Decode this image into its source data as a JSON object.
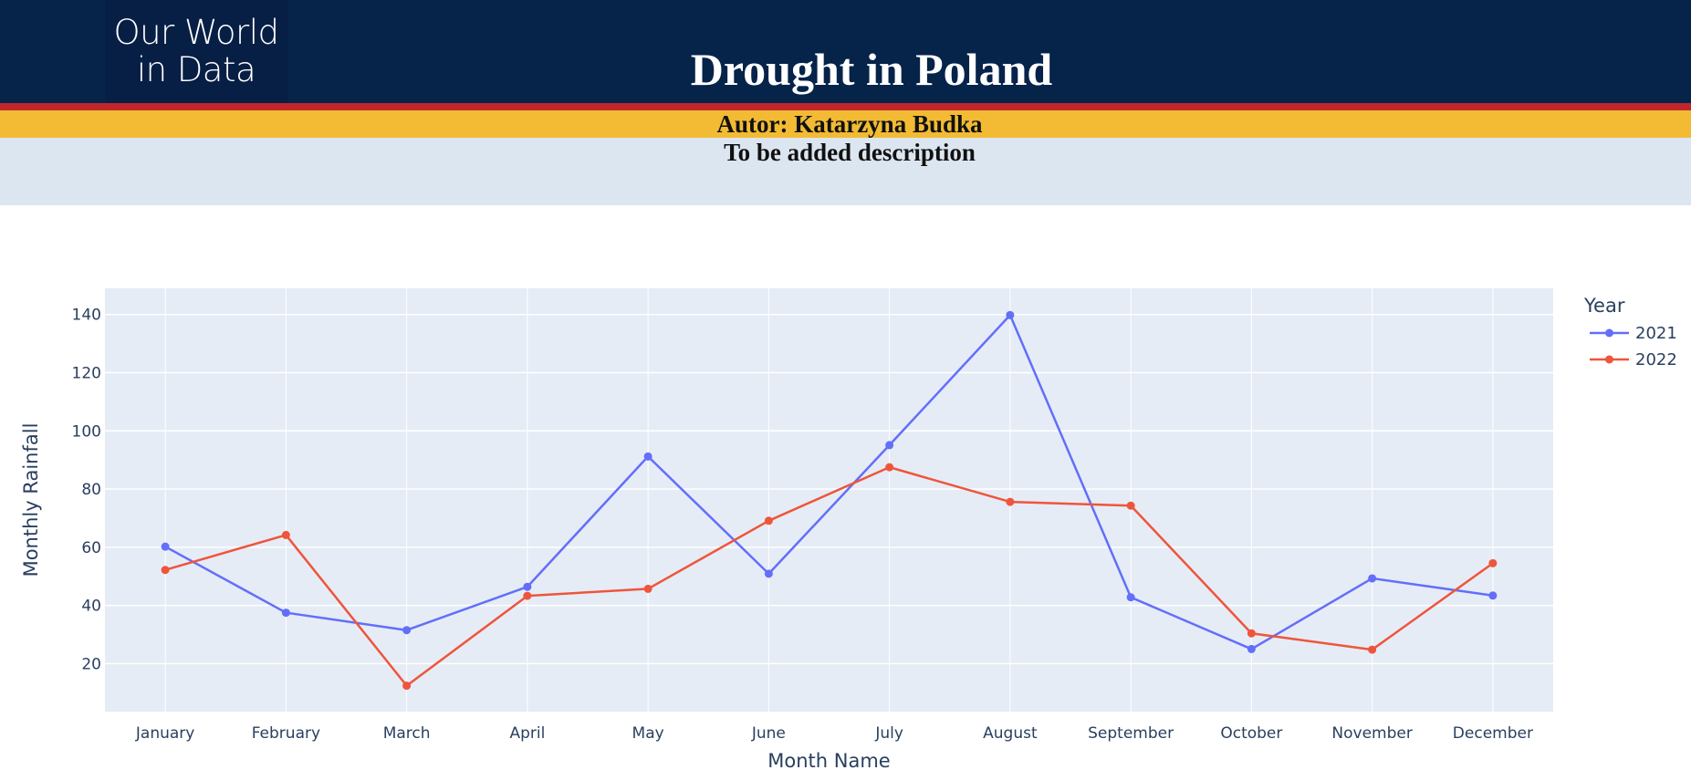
{
  "header": {
    "logo_line1": "Our World",
    "logo_line2": "in Data",
    "title": "Drought in Poland",
    "author": "Autor: Katarzyna Budka",
    "description": "To be added description"
  },
  "colors": {
    "header_bg": "#06234a",
    "stripe_red": "#c0272d",
    "stripe_yellow": "#f2bb33",
    "description_bg": "#dce6f0",
    "plot_bg": "#e5ecf6"
  },
  "chart_data": {
    "type": "line",
    "title": "",
    "xlabel": "Month Name",
    "ylabel": "Monthly Rainfall",
    "categories": [
      "January",
      "February",
      "March",
      "April",
      "May",
      "June",
      "July",
      "August",
      "September",
      "October",
      "November",
      "December"
    ],
    "ylim": [
      3.5,
      149
    ],
    "yticks": [
      20,
      40,
      60,
      80,
      100,
      120,
      140
    ],
    "grid": true,
    "legend": {
      "title": "Year",
      "position": "top-right"
    },
    "series": [
      {
        "name": "2021",
        "color": "#636efa",
        "values": [
          60.2,
          37.5,
          31.5,
          46.4,
          91.2,
          50.9,
          95.1,
          139.8,
          42.8,
          25.0,
          49.3,
          43.4
        ]
      },
      {
        "name": "2022",
        "color": "#ef553b",
        "values": [
          52.2,
          64.2,
          12.4,
          43.3,
          45.7,
          69.1,
          87.5,
          75.6,
          74.3,
          30.4,
          24.8,
          54.5
        ]
      }
    ]
  }
}
